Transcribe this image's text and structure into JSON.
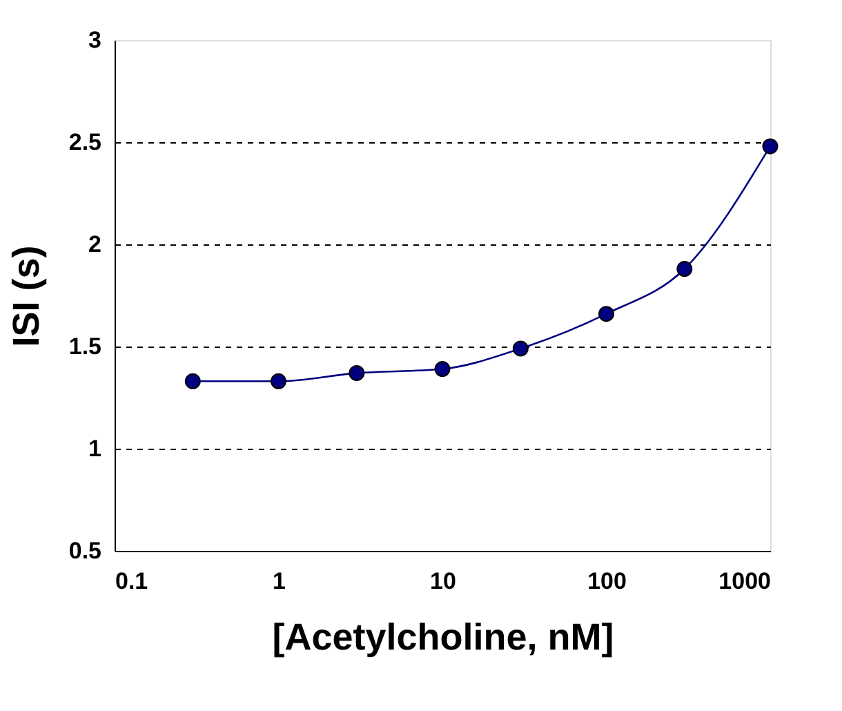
{
  "chart_data": {
    "type": "line",
    "xlabel": "[Acetylcholine, nM]",
    "ylabel": "ISI (s)",
    "x": [
      0.3,
      1,
      3,
      10,
      30,
      100,
      300,
      1000
    ],
    "series": [
      {
        "color": "#000080",
        "values": [
          1.33,
          1.33,
          1.37,
          1.39,
          1.49,
          1.66,
          1.88,
          2.48
        ]
      }
    ],
    "log": "x",
    "xlim": [
      0.1,
      1000
    ],
    "xticks": [
      0.1,
      1,
      10,
      100,
      1000
    ],
    "ylim": [
      0.5,
      3
    ],
    "yticks": [
      0.5,
      1,
      1.5,
      2,
      2.5,
      3
    ],
    "grid": "y",
    "marker": "circle",
    "line_style": "solid",
    "legend": false
  }
}
